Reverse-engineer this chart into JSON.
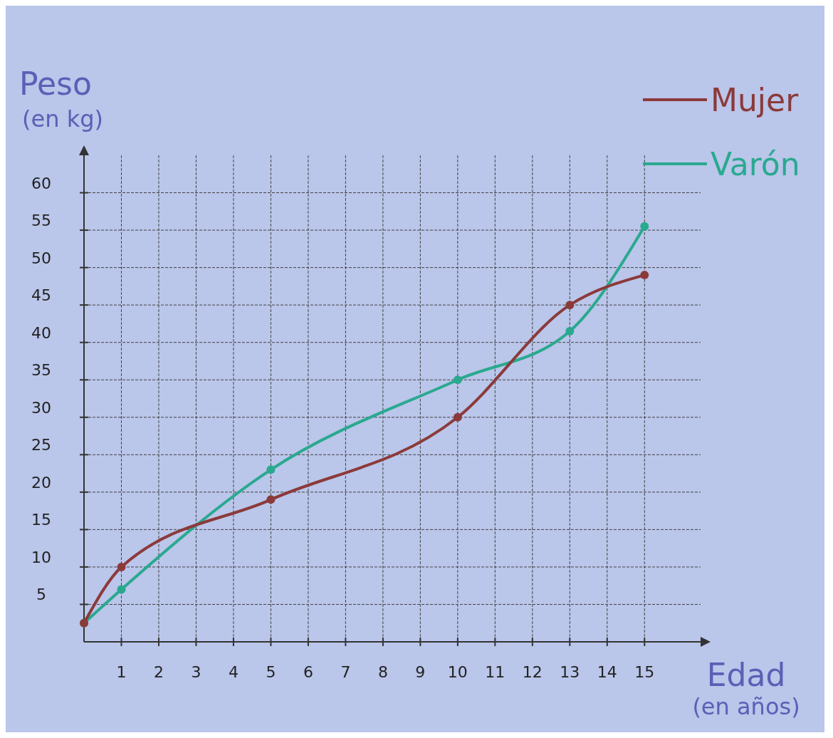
{
  "chart_data": {
    "type": "line",
    "xlabel": "Edad\n(en años)",
    "ylabel": "Peso\n(en kg)",
    "x": [
      0,
      1,
      5,
      10,
      13,
      15
    ],
    "series": [
      {
        "name": "Mujer",
        "color": "#8b3a3a",
        "values": [
          2.5,
          10,
          19,
          30,
          45,
          49
        ]
      },
      {
        "name": "Varón",
        "color": "#2aa98f",
        "values": [
          2.5,
          7,
          23,
          35,
          41.5,
          55.5
        ]
      }
    ],
    "xlim": [
      0,
      16.5
    ],
    "ylim": [
      0,
      65
    ],
    "xticks": [
      1,
      2,
      3,
      4,
      5,
      6,
      7,
      8,
      9,
      10,
      11,
      12,
      13,
      14,
      15
    ],
    "yticks": [
      5,
      10,
      15,
      20,
      25,
      30,
      35,
      40,
      45,
      50,
      55,
      60
    ],
    "grid": true,
    "legend": "top right",
    "marker": "circle",
    "line_style": "solid"
  }
}
